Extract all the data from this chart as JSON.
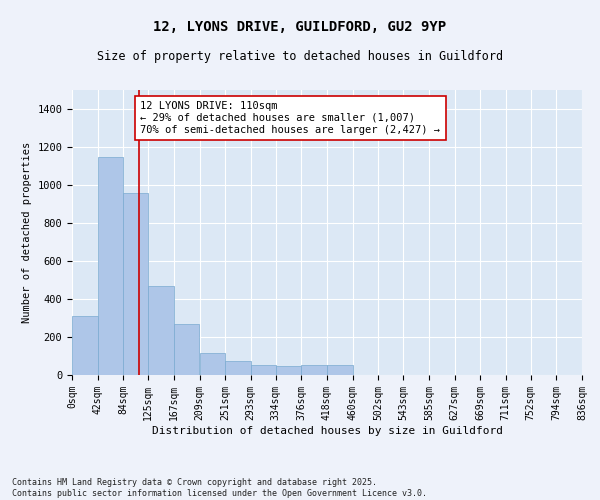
{
  "title": "12, LYONS DRIVE, GUILDFORD, GU2 9YP",
  "subtitle": "Size of property relative to detached houses in Guildford",
  "xlabel": "Distribution of detached houses by size in Guildford",
  "ylabel": "Number of detached properties",
  "bar_color": "#aec6e8",
  "bar_edge_color": "#7aaad0",
  "background_color": "#dce8f5",
  "grid_color": "#ffffff",
  "bins": [
    0,
    42,
    84,
    125,
    167,
    209,
    251,
    293,
    334,
    376,
    418,
    460,
    502,
    543,
    585,
    627,
    669,
    711,
    752,
    794,
    836
  ],
  "bin_labels": [
    "0sqm",
    "42sqm",
    "84sqm",
    "125sqm",
    "167sqm",
    "209sqm",
    "251sqm",
    "293sqm",
    "334sqm",
    "376sqm",
    "418sqm",
    "460sqm",
    "502sqm",
    "543sqm",
    "585sqm",
    "627sqm",
    "669sqm",
    "711sqm",
    "752sqm",
    "794sqm",
    "836sqm"
  ],
  "values": [
    310,
    1150,
    960,
    470,
    270,
    115,
    75,
    55,
    50,
    55,
    55,
    0,
    0,
    0,
    0,
    0,
    0,
    0,
    0,
    0
  ],
  "ylim": [
    0,
    1500
  ],
  "yticks": [
    0,
    200,
    400,
    600,
    800,
    1000,
    1200,
    1400
  ],
  "vline_x": 110,
  "vline_color": "#cc0000",
  "annotation_text": "12 LYONS DRIVE: 110sqm\n← 29% of detached houses are smaller (1,007)\n70% of semi-detached houses are larger (2,427) →",
  "annotation_box_color": "#ffffff",
  "annotation_box_edge": "#cc0000",
  "annotation_fontsize": 7.5,
  "footer": "Contains HM Land Registry data © Crown copyright and database right 2025.\nContains public sector information licensed under the Open Government Licence v3.0.",
  "title_fontsize": 10,
  "subtitle_fontsize": 8.5,
  "xlabel_fontsize": 8,
  "ylabel_fontsize": 7.5,
  "tick_fontsize": 7,
  "ytick_fontsize": 7.5,
  "fig_bg": "#eef2fa"
}
